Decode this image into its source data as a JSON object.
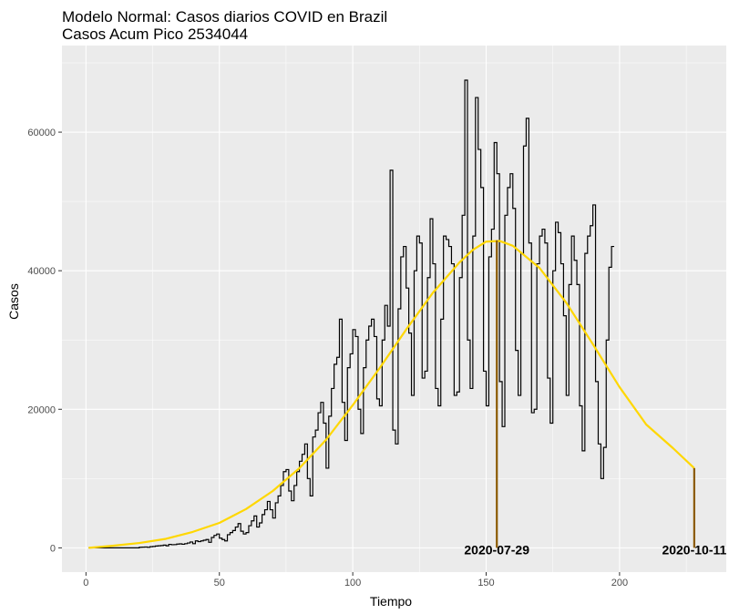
{
  "chart_data": {
    "type": "line",
    "title": "Modelo Normal: Casos diarios COVID en Brazil",
    "subtitle": "Casos Acum Pico 2534044",
    "xlabel": "Tiempo",
    "ylabel": "Casos",
    "xlim": [
      -9,
      240
    ],
    "ylim": [
      -3500,
      72500
    ],
    "x_ticks": [
      0,
      50,
      100,
      150,
      200
    ],
    "y_ticks": [
      0,
      20000,
      40000,
      60000
    ],
    "x_tick_labels": [
      "0",
      "50",
      "100",
      "150",
      "200"
    ],
    "y_tick_labels": [
      "0",
      "20000",
      "40000",
      "60000"
    ],
    "grid": true,
    "series": [
      {
        "kind": "step",
        "color": "#000000",
        "x_start": 1,
        "values": [
          0,
          0,
          0,
          0,
          0,
          0,
          0,
          0,
          0,
          0,
          0,
          0,
          0,
          0,
          0,
          0,
          0,
          0,
          0,
          80,
          100,
          120,
          80,
          160,
          200,
          260,
          300,
          330,
          400,
          300,
          500,
          450,
          470,
          540,
          580,
          520,
          600,
          700,
          850,
          600,
          1000,
          900,
          1000,
          1100,
          1200,
          800,
          1500,
          1800,
          2000,
          1400,
          1200,
          1000,
          1900,
          2200,
          2500,
          3000,
          3500,
          2400,
          2000,
          2200,
          3200,
          3900,
          4600,
          3000,
          3600,
          4800,
          5500,
          6700,
          5500,
          4300,
          6500,
          7500,
          9000,
          11000,
          11300,
          8200,
          6800,
          9000,
          11000,
          12500,
          13500,
          15000,
          10000,
          7500,
          16000,
          17000,
          19500,
          21000,
          18000,
          11500,
          19000,
          23000,
          26500,
          27500,
          33000,
          21000,
          15500,
          26000,
          28000,
          31500,
          30500,
          20000,
          16500,
          26000,
          30000,
          32000,
          33000,
          30500,
          21500,
          20500,
          30000,
          35000,
          32000,
          54500,
          17000,
          15000,
          34500,
          42000,
          43500,
          37500,
          31000,
          22000,
          40000,
          45000,
          44000,
          24500,
          25500,
          39000,
          47500,
          41000,
          23000,
          20500,
          33000,
          45000,
          44500,
          43500,
          41000,
          22000,
          22500,
          39000,
          48000,
          67500,
          30000,
          23000,
          45000,
          65000,
          57500,
          52000,
          25500,
          20500,
          42000,
          46000,
          58500,
          54000,
          24000,
          17500,
          48000,
          52000,
          54000,
          49000,
          28500,
          22000,
          42500,
          58000,
          62000,
          44000,
          19500,
          20000,
          41000,
          45000,
          46000,
          44000,
          24500,
          18000,
          40000,
          47000,
          45500,
          41000,
          33500,
          22000,
          38000,
          45000,
          41500,
          38000,
          20500,
          14000,
          42500,
          45000,
          46500,
          49500,
          24000,
          15000,
          10000,
          14500,
          30000,
          40500,
          43500
        ]
      },
      {
        "kind": "fitted",
        "color": "#ffd700",
        "x": [
          1,
          10,
          20,
          30,
          40,
          50,
          60,
          70,
          80,
          90,
          100,
          110,
          120,
          130,
          140,
          145,
          150,
          155,
          160,
          170,
          180,
          190,
          200,
          210,
          220,
          228
        ],
        "y": [
          0,
          300,
          700,
          1300,
          2300,
          3600,
          5600,
          8200,
          11500,
          15600,
          20600,
          25900,
          31500,
          36800,
          41200,
          43000,
          44200,
          44300,
          43600,
          40400,
          35400,
          29400,
          23200,
          17800,
          14400,
          11500
        ]
      }
    ],
    "markers": [
      {
        "x": 154,
        "y": 44400,
        "label": "2020-07-29",
        "color": "#8b5a00"
      },
      {
        "x": 228,
        "y": 11500,
        "label": "2020-10-11",
        "color": "#8b5a00"
      }
    ],
    "colors": {
      "panel": "#ebebeb",
      "grid": "#ffffff",
      "tick": "#333333"
    }
  }
}
